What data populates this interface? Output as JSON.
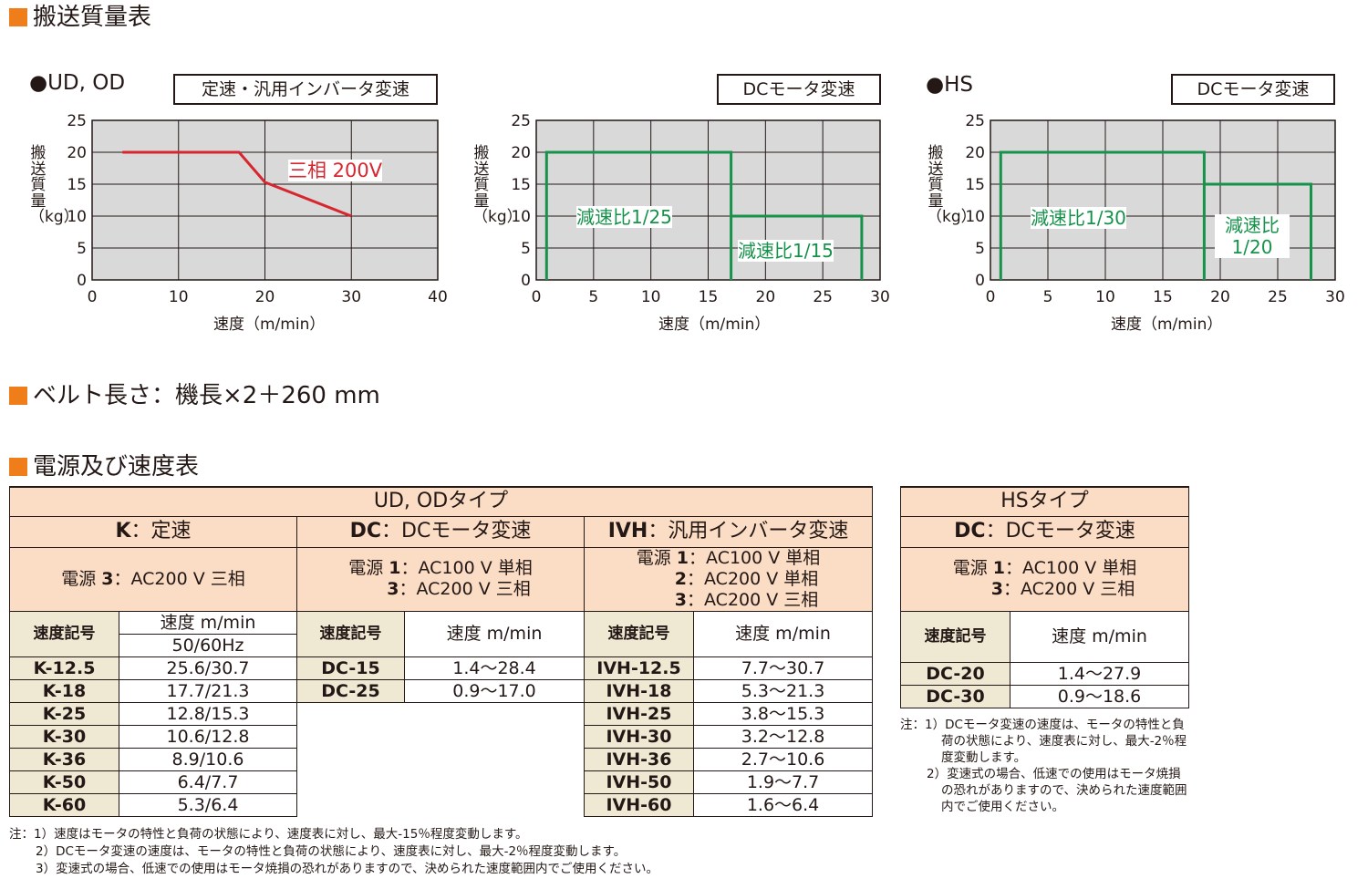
{
  "sections": {
    "mass_table_title": "搬送質量表",
    "belt_length": "ベルト長さ：機長×2＋260 mm",
    "power_speed_title": "電源及び速度表"
  },
  "charts_labels": {
    "ud_od_tag": "●UD, OD",
    "hs_tag": "●HS",
    "y_axis_label": "搬送質量（kg）",
    "x_axis_label": "速度（m/min）"
  },
  "chart_data": [
    {
      "type": "line",
      "mode_label": "定速・汎用インバータ変速",
      "xlabel": "速度（m/min）",
      "ylabel": "搬送質量（kg）",
      "xlim": [
        0,
        40
      ],
      "ylim": [
        0,
        25
      ],
      "xticks": [
        "0",
        "10",
        "20",
        "30",
        "40"
      ],
      "yticks": [
        "0",
        "5",
        "10",
        "15",
        "20",
        "25"
      ],
      "grid": true,
      "color": "#d7262f",
      "series": [
        {
          "name": "三相 200V",
          "x": [
            3.5,
            17,
            20,
            30
          ],
          "y": [
            20,
            20,
            15.3,
            10
          ]
        }
      ]
    },
    {
      "type": "line",
      "mode_label": "DCモータ変速",
      "xlabel": "速度（m/min）",
      "ylabel": "搬送質量（kg）",
      "xlim": [
        0,
        30
      ],
      "ylim": [
        0,
        25
      ],
      "xticks": [
        "0",
        "5",
        "10",
        "15",
        "20",
        "25",
        "30"
      ],
      "yticks": [
        "0",
        "5",
        "10",
        "15",
        "20",
        "25"
      ],
      "grid": true,
      "color": "#16924b",
      "series": [
        {
          "name": "減速比1/25",
          "x": [
            0.9,
            0.9,
            17.0,
            17.0
          ],
          "y": [
            0,
            20,
            20,
            0
          ]
        },
        {
          "name": "減速比1/15",
          "x": [
            17.0,
            28.4,
            28.4
          ],
          "y": [
            10,
            10,
            0
          ]
        }
      ]
    },
    {
      "type": "line",
      "mode_label": "DCモータ変速",
      "xlabel": "速度（m/min）",
      "ylabel": "搬送質量（kg）",
      "xlim": [
        0,
        30
      ],
      "ylim": [
        0,
        25
      ],
      "xticks": [
        "0",
        "5",
        "10",
        "15",
        "20",
        "25",
        "30"
      ],
      "yticks": [
        "0",
        "5",
        "10",
        "15",
        "20",
        "25"
      ],
      "grid": true,
      "color": "#16924b",
      "series": [
        {
          "name": "減速比1/30",
          "x": [
            0.9,
            0.9,
            18.6,
            18.6
          ],
          "y": [
            0,
            20,
            20,
            0
          ]
        },
        {
          "name": "減速比1/20",
          "x": [
            18.6,
            27.9,
            27.9
          ],
          "y": [
            15,
            15,
            0
          ]
        }
      ]
    }
  ],
  "speed_table_ud_od": {
    "title": "UD, ODタイプ",
    "k_header_code": "K",
    "k_header_text": "：定速",
    "dc_header_code": "DC",
    "dc_header_text": "：DCモータ変速",
    "ivh_header_code": "IVH",
    "ivh_header_text": "：汎用インバータ変速",
    "k_power_prefix": "電源 ",
    "k_power_code": "3",
    "k_power_text": "：AC200 V 三相",
    "dc_power_prefix": "電源 ",
    "dc_power_code1": "1",
    "dc_power_text1": "：AC100 V 単相",
    "dc_power_code2": "3",
    "dc_power_text2": "：AC200 V 三相",
    "ivh_power_prefix": "電源 ",
    "ivh_power_code1": "1",
    "ivh_power_text1": "：AC100 V 単相",
    "ivh_power_code2": "2",
    "ivh_power_text2": "：AC200 V 単相",
    "ivh_power_code3": "3",
    "ivh_power_text3": "：AC200 V 三相",
    "col_code": "速度記号",
    "col_speed": "速度 m/min",
    "col_freq": "50/60Hz",
    "k_rows": [
      {
        "code": "K-12.5",
        "speed": "25.6/30.7"
      },
      {
        "code": "K-18",
        "speed": "17.7/21.3"
      },
      {
        "code": "K-25",
        "speed": "12.8/15.3"
      },
      {
        "code": "K-30",
        "speed": "10.6/12.8"
      },
      {
        "code": "K-36",
        "speed": "8.9/10.6"
      },
      {
        "code": "K-50",
        "speed": "6.4/7.7"
      },
      {
        "code": "K-60",
        "speed": "5.3/6.4"
      }
    ],
    "dc_rows": [
      {
        "code": "DC-15",
        "speed": "1.4～28.4"
      },
      {
        "code": "DC-25",
        "speed": "0.9～17.0"
      }
    ],
    "ivh_rows": [
      {
        "code": "IVH-12.5",
        "speed": "7.7～30.7"
      },
      {
        "code": "IVH-18",
        "speed": "5.3～21.3"
      },
      {
        "code": "IVH-25",
        "speed": "3.8～15.3"
      },
      {
        "code": "IVH-30",
        "speed": "3.2～12.8"
      },
      {
        "code": "IVH-36",
        "speed": "2.7～10.6"
      },
      {
        "code": "IVH-50",
        "speed": "1.9～7.7"
      },
      {
        "code": "IVH-60",
        "speed": "1.6～6.4"
      }
    ]
  },
  "speed_table_hs": {
    "title": "HSタイプ",
    "dc_header_code": "DC",
    "dc_header_text": "：DCモータ変速",
    "power_prefix": "電源 ",
    "power_code1": "1",
    "power_text1": "：AC100 V 単相",
    "power_code2": "3",
    "power_text2": "：AC200 V 三相",
    "col_code": "速度記号",
    "col_speed": "速度 m/min",
    "rows": [
      {
        "code": "DC-20",
        "speed": "1.4～27.9"
      },
      {
        "code": "DC-30",
        "speed": "0.9～18.6"
      }
    ]
  },
  "notes_main": [
    "注：1）速度はモータの特性と負荷の状態により、速度表に対し、最大-15％程度変動します。",
    "2）DCモータ変速の速度は、モータの特性と負荷の状態により、速度表に対し、最大-2％程度変動します。",
    "3）変速式の場合、低速での使用はモータ焼損の恐れがありますので、決められた速度範囲内でご使用ください。"
  ],
  "notes_hs": [
    "注：1）DCモータ変速の速度は、モータの特性と負荷の状態により、速度表に対し、最大-2％程度変動します。",
    "2）変速式の場合、低速での使用はモータ焼損の恐れがありますので、決められた速度範囲内でご使用ください。"
  ]
}
